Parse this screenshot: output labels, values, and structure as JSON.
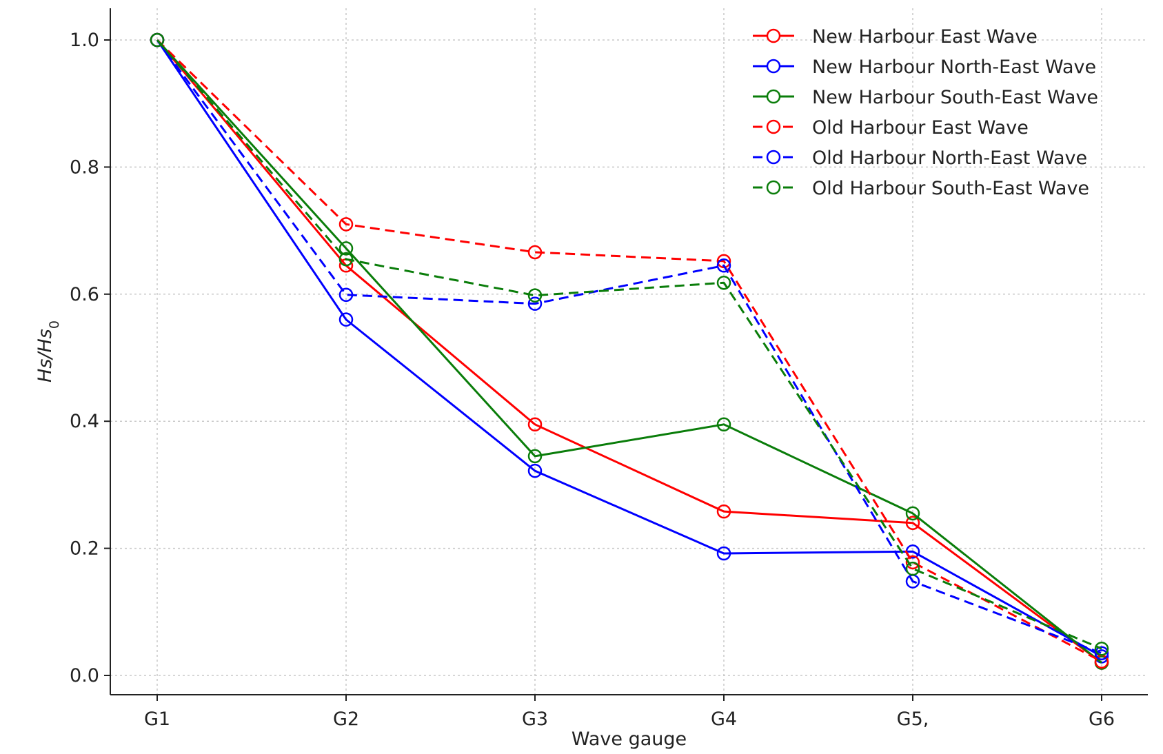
{
  "chart_data": {
    "type": "line",
    "title": "",
    "xlabel": "Wave gauge",
    "ylabel_main": "Hs/Hs",
    "ylabel_sub": "0",
    "categories": [
      "G1",
      "G2",
      "G3",
      "G4",
      "G5,",
      "G6"
    ],
    "ylim": [
      0.0,
      1.0
    ],
    "yticks": [
      "0.0",
      "0.2",
      "0.4",
      "0.6",
      "0.8",
      "1.0"
    ],
    "ytick_values": [
      0.0,
      0.2,
      0.4,
      0.6,
      0.8,
      1.0
    ],
    "grid": true,
    "legend_position": "top-right",
    "series": [
      {
        "name": "New Harbour East Wave",
        "color": "#ff0000",
        "dash": "solid",
        "values": [
          1.0,
          0.645,
          0.395,
          0.258,
          0.24,
          0.02
        ]
      },
      {
        "name": "New Harbour North-East Wave",
        "color": "#0000ff",
        "dash": "solid",
        "values": [
          1.0,
          0.56,
          0.322,
          0.192,
          0.195,
          0.03
        ]
      },
      {
        "name": "New Harbour South-East Wave",
        "color": "#0a7d0a",
        "dash": "solid",
        "values": [
          1.0,
          0.672,
          0.345,
          0.395,
          0.255,
          0.02
        ]
      },
      {
        "name": "Old Harbour East Wave",
        "color": "#ff0000",
        "dash": "dashed",
        "values": [
          1.0,
          0.71,
          0.666,
          0.652,
          0.178,
          0.022
        ]
      },
      {
        "name": "Old Harbour North-East Wave",
        "color": "#0000ff",
        "dash": "dashed",
        "values": [
          1.0,
          0.599,
          0.585,
          0.645,
          0.148,
          0.035
        ]
      },
      {
        "name": "Old Harbour South-East Wave",
        "color": "#0a7d0a",
        "dash": "dashed",
        "values": [
          1.0,
          0.655,
          0.598,
          0.618,
          0.168,
          0.042
        ]
      }
    ]
  }
}
